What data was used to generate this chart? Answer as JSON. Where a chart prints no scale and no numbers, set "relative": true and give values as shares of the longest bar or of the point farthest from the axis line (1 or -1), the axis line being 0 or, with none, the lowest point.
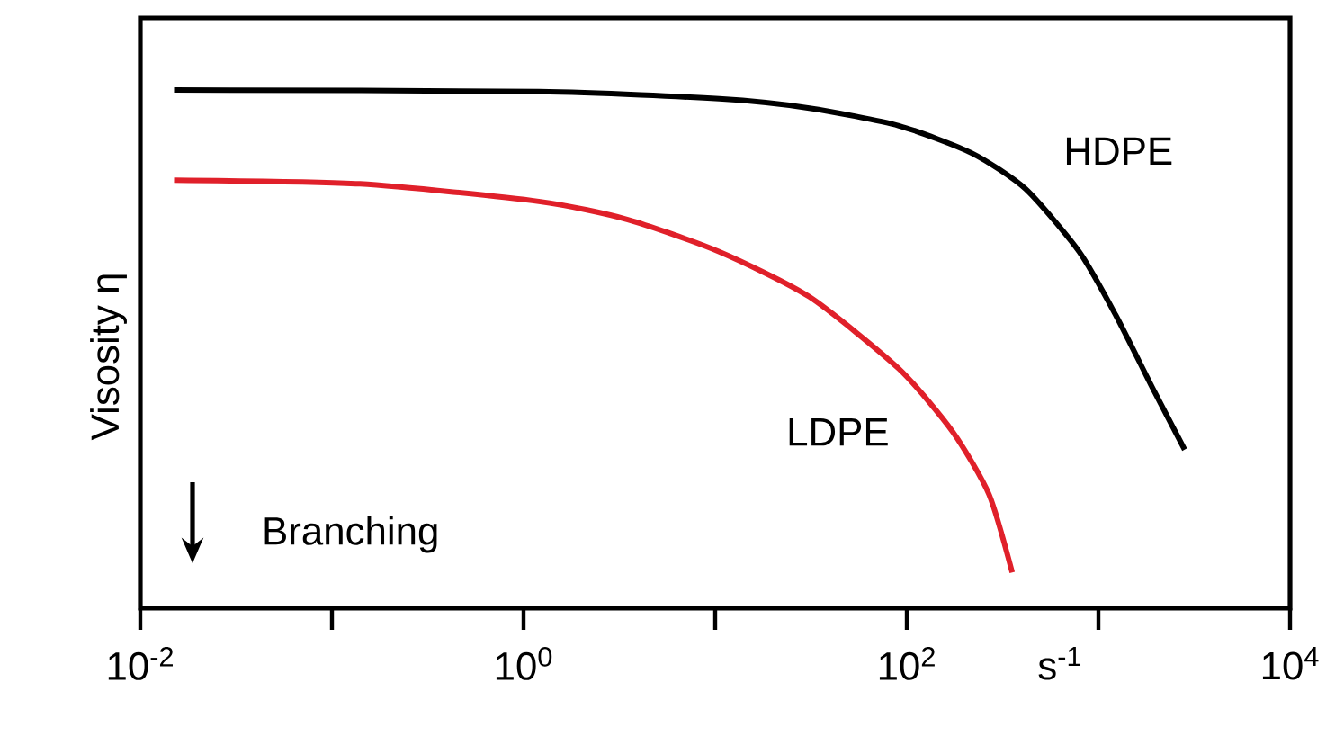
{
  "chart_data": {
    "type": "line",
    "relative": true,
    "log": "x",
    "xlabel": "s$^{-1}$",
    "ylabel": "Visosity η",
    "xlim": [
      0.01,
      10000
    ],
    "xticks": [
      {
        "value": 0.01,
        "label": "10$^{-2}$"
      },
      {
        "value": 0.1,
        "label": null
      },
      {
        "value": 1,
        "label": "10$^{0}$"
      },
      {
        "value": 10,
        "label": null
      },
      {
        "value": 100,
        "label": "10$^{2}$"
      },
      {
        "value": 1000,
        "label": null
      },
      {
        "value": 10000,
        "label": "10$^{4}$"
      }
    ],
    "series": [
      {
        "name": "HDPE",
        "color": "#000000",
        "x": [
          0.015,
          1.2,
          10.5,
          31,
          91,
          219,
          417,
          794,
          1230,
          1905,
          2818
        ],
        "values": [
          1.0,
          0.997,
          0.983,
          0.965,
          0.931,
          0.878,
          0.809,
          0.688,
          0.566,
          0.427,
          0.306
        ]
      },
      {
        "name": "LDPE",
        "color": "#e0202a",
        "x": [
          0.015,
          0.14,
          1.2,
          3.5,
          10.5,
          31,
          91,
          174,
          269,
          355
        ],
        "values": [
          0.826,
          0.819,
          0.785,
          0.75,
          0.688,
          0.601,
          0.462,
          0.34,
          0.219,
          0.069
        ]
      }
    ],
    "annotations": [
      "Branching"
    ],
    "grid": false,
    "legend": false
  }
}
